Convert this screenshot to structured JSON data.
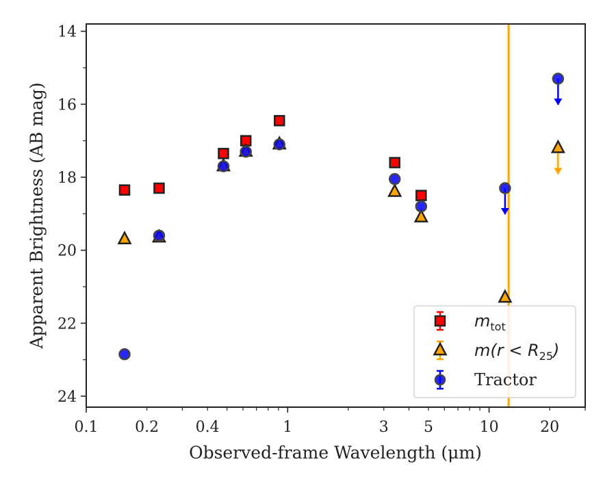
{
  "chart_data": {
    "type": "scatter",
    "xlabel": "Observed-frame Wavelength (μm)",
    "ylabel": "Apparent Brightness (AB mag)",
    "xscale": "log",
    "xlim": [
      0.1,
      30
    ],
    "ylim": [
      24.3,
      13.8
    ],
    "y_inverted": true,
    "x_ticks": [
      {
        "value": 0.1,
        "label": "0.1"
      },
      {
        "value": 0.2,
        "label": "0.2"
      },
      {
        "value": 0.4,
        "label": "0.4"
      },
      {
        "value": 1,
        "label": "1"
      },
      {
        "value": 3,
        "label": "3"
      },
      {
        "value": 5,
        "label": "5"
      },
      {
        "value": 10,
        "label": "10"
      },
      {
        "value": 20,
        "label": "20"
      }
    ],
    "y_ticks": [
      {
        "value": 14,
        "label": "14"
      },
      {
        "value": 16,
        "label": "16"
      },
      {
        "value": 18,
        "label": "18"
      },
      {
        "value": 20,
        "label": "20"
      },
      {
        "value": 22,
        "label": "22"
      },
      {
        "value": 24,
        "label": "24"
      }
    ],
    "grid": false,
    "legend_position": "bottom-right",
    "vertical_line": {
      "x": 12.5,
      "color": "#ffa500"
    },
    "series": [
      {
        "name": "m_tot",
        "marker": "square",
        "color": "#ff0000",
        "points": [
          {
            "x": 0.155,
            "y": 18.35
          },
          {
            "x": 0.23,
            "y": 18.3
          },
          {
            "x": 0.48,
            "y": 17.35
          },
          {
            "x": 0.62,
            "y": 17.0
          },
          {
            "x": 0.91,
            "y": 16.45
          },
          {
            "x": 3.4,
            "y": 17.6
          },
          {
            "x": 4.6,
            "y": 18.5
          }
        ]
      },
      {
        "name": "m(r < R25)",
        "marker": "triangle",
        "color": "#ffa500",
        "points": [
          {
            "x": 0.155,
            "y": 19.7
          },
          {
            "x": 0.23,
            "y": 19.65
          },
          {
            "x": 0.48,
            "y": 17.7
          },
          {
            "x": 0.62,
            "y": 17.3
          },
          {
            "x": 0.91,
            "y": 17.1
          },
          {
            "x": 3.4,
            "y": 18.4
          },
          {
            "x": 4.6,
            "y": 19.1
          },
          {
            "x": 12.0,
            "y": 21.3
          },
          {
            "x": 22.0,
            "y": 17.2,
            "upper_limit": true
          }
        ]
      },
      {
        "name": "Tractor",
        "marker": "circle",
        "color": "#0000ff",
        "points": [
          {
            "x": 0.155,
            "y": 22.85
          },
          {
            "x": 0.23,
            "y": 19.6
          },
          {
            "x": 0.48,
            "y": 17.7
          },
          {
            "x": 0.62,
            "y": 17.3
          },
          {
            "x": 0.91,
            "y": 17.1
          },
          {
            "x": 3.4,
            "y": 18.05
          },
          {
            "x": 4.6,
            "y": 18.8
          },
          {
            "x": 12.0,
            "y": 18.3,
            "upper_limit": true
          },
          {
            "x": 22.0,
            "y": 15.3,
            "upper_limit": true
          }
        ]
      }
    ],
    "legend": [
      {
        "marker": "square",
        "color": "#ff0000",
        "main": "m",
        "sub": "tot",
        "rest": ""
      },
      {
        "marker": "triangle",
        "color": "#ffa500",
        "main": "m(r < R",
        "sub": "25",
        "rest": ")"
      },
      {
        "marker": "circle",
        "color": "#0000ff",
        "main": "",
        "sub": "",
        "rest": "Tractor"
      }
    ]
  }
}
